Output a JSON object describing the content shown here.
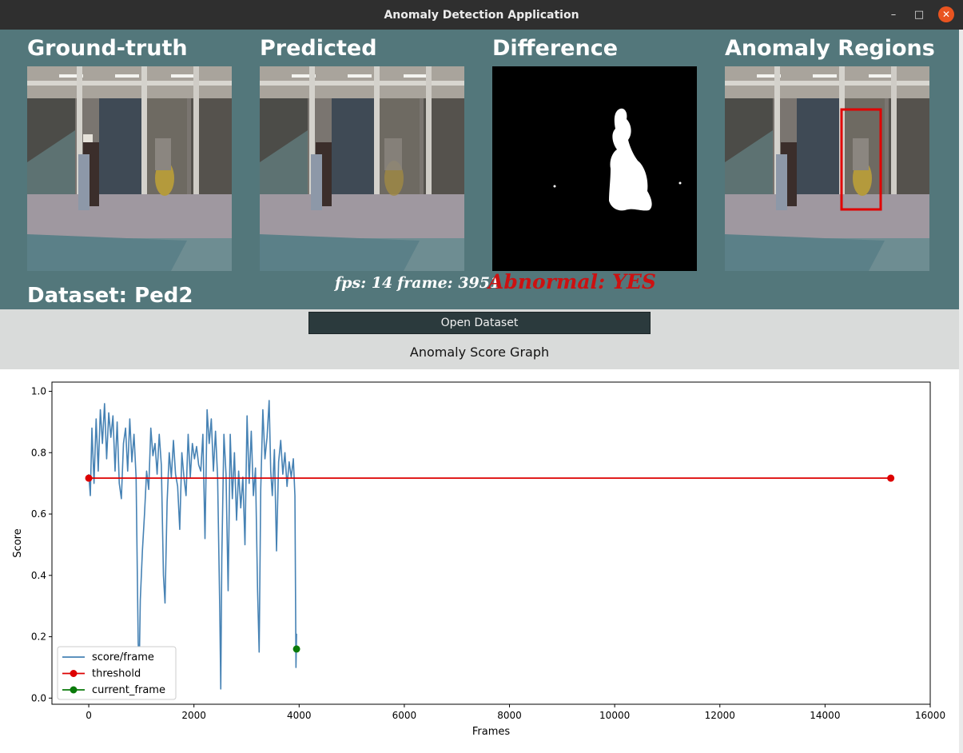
{
  "window": {
    "title": "Anomaly Detection Application",
    "minimize": "–",
    "maximize": "□",
    "close": "✕"
  },
  "panels": [
    {
      "key": "ground_truth",
      "title": "Ground-truth"
    },
    {
      "key": "predicted",
      "title": "Predicted"
    },
    {
      "key": "difference",
      "title": "Difference"
    },
    {
      "key": "anomaly_regions",
      "title": "Anomaly Regions"
    }
  ],
  "dataset": {
    "label": "Dataset: Ped2"
  },
  "stats": {
    "fps": "fps: 14",
    "frame": "frame: 3951",
    "abnormal": "Abnormal: YES"
  },
  "colors": {
    "panel_bg": "#53777b",
    "abnormal_text": "#cc1111",
    "score_line": "#4682b4",
    "threshold": "#dd0000",
    "current_frame": "#0a7a0a"
  },
  "controls": {
    "open_dataset_label": "Open Dataset",
    "graph_title": "Anomaly Score Graph"
  },
  "chart_data": {
    "type": "line",
    "xlabel": "Frames",
    "ylabel": "Score",
    "xlim": [
      -700,
      16000
    ],
    "ylim": [
      -0.02,
      1.03
    ],
    "xticks": [
      0,
      2000,
      4000,
      6000,
      8000,
      10000,
      12000,
      14000,
      16000
    ],
    "yticks": [
      0.0,
      0.2,
      0.4,
      0.6,
      0.8,
      1.0
    ],
    "legend_position": "lower-left",
    "series": [
      {
        "name": "score/frame",
        "color": "#4682b4",
        "points": [
          [
            0,
            0.73
          ],
          [
            30,
            0.66
          ],
          [
            60,
            0.88
          ],
          [
            100,
            0.7
          ],
          [
            140,
            0.91
          ],
          [
            180,
            0.74
          ],
          [
            220,
            0.94
          ],
          [
            260,
            0.83
          ],
          [
            300,
            0.96
          ],
          [
            340,
            0.78
          ],
          [
            380,
            0.93
          ],
          [
            420,
            0.85
          ],
          [
            460,
            0.92
          ],
          [
            500,
            0.74
          ],
          [
            540,
            0.9
          ],
          [
            580,
            0.7
          ],
          [
            620,
            0.65
          ],
          [
            660,
            0.83
          ],
          [
            700,
            0.88
          ],
          [
            740,
            0.74
          ],
          [
            780,
            0.91
          ],
          [
            820,
            0.77
          ],
          [
            860,
            0.86
          ],
          [
            900,
            0.72
          ],
          [
            940,
            0.18
          ],
          [
            960,
            0.1
          ],
          [
            980,
            0.32
          ],
          [
            1020,
            0.48
          ],
          [
            1060,
            0.6
          ],
          [
            1100,
            0.74
          ],
          [
            1140,
            0.68
          ],
          [
            1180,
            0.88
          ],
          [
            1220,
            0.79
          ],
          [
            1260,
            0.83
          ],
          [
            1300,
            0.73
          ],
          [
            1340,
            0.86
          ],
          [
            1380,
            0.76
          ],
          [
            1420,
            0.4
          ],
          [
            1450,
            0.31
          ],
          [
            1490,
            0.64
          ],
          [
            1530,
            0.8
          ],
          [
            1570,
            0.72
          ],
          [
            1610,
            0.84
          ],
          [
            1650,
            0.73
          ],
          [
            1690,
            0.69
          ],
          [
            1730,
            0.55
          ],
          [
            1770,
            0.8
          ],
          [
            1810,
            0.72
          ],
          [
            1850,
            0.66
          ],
          [
            1890,
            0.86
          ],
          [
            1930,
            0.72
          ],
          [
            1970,
            0.83
          ],
          [
            2010,
            0.78
          ],
          [
            2050,
            0.82
          ],
          [
            2090,
            0.76
          ],
          [
            2130,
            0.74
          ],
          [
            2170,
            0.86
          ],
          [
            2210,
            0.52
          ],
          [
            2250,
            0.94
          ],
          [
            2290,
            0.83
          ],
          [
            2330,
            0.91
          ],
          [
            2370,
            0.74
          ],
          [
            2410,
            0.87
          ],
          [
            2450,
            0.72
          ],
          [
            2490,
            0.3
          ],
          [
            2510,
            0.03
          ],
          [
            2530,
            0.46
          ],
          [
            2570,
            0.86
          ],
          [
            2610,
            0.73
          ],
          [
            2650,
            0.35
          ],
          [
            2690,
            0.86
          ],
          [
            2730,
            0.65
          ],
          [
            2770,
            0.8
          ],
          [
            2810,
            0.58
          ],
          [
            2850,
            0.74
          ],
          [
            2890,
            0.62
          ],
          [
            2930,
            0.72
          ],
          [
            2970,
            0.5
          ],
          [
            3010,
            0.92
          ],
          [
            3050,
            0.7
          ],
          [
            3090,
            0.87
          ],
          [
            3130,
            0.66
          ],
          [
            3170,
            0.75
          ],
          [
            3210,
            0.35
          ],
          [
            3240,
            0.15
          ],
          [
            3270,
            0.68
          ],
          [
            3310,
            0.94
          ],
          [
            3350,
            0.78
          ],
          [
            3390,
            0.85
          ],
          [
            3430,
            0.97
          ],
          [
            3460,
            0.74
          ],
          [
            3490,
            0.66
          ],
          [
            3530,
            0.81
          ],
          [
            3570,
            0.48
          ],
          [
            3610,
            0.77
          ],
          [
            3650,
            0.84
          ],
          [
            3690,
            0.73
          ],
          [
            3730,
            0.8
          ],
          [
            3770,
            0.69
          ],
          [
            3810,
            0.77
          ],
          [
            3850,
            0.72
          ],
          [
            3890,
            0.78
          ],
          [
            3920,
            0.66
          ],
          [
            3940,
            0.1
          ],
          [
            3951,
            0.21
          ]
        ]
      },
      {
        "name": "threshold",
        "color": "#dd0000",
        "points": [
          [
            0,
            0.717
          ],
          [
            15250,
            0.717
          ]
        ]
      },
      {
        "name": "current_frame",
        "color": "#0a7a0a",
        "points": [
          [
            3951,
            0.16
          ]
        ]
      }
    ]
  }
}
